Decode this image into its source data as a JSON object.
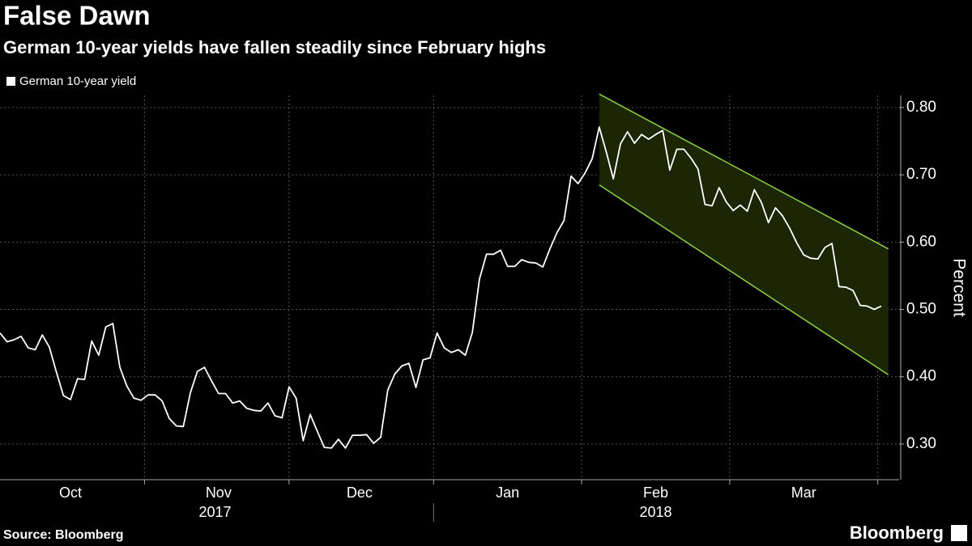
{
  "chart_data": {
    "type": "line",
    "title": "False Dawn",
    "subtitle": "German 10-year yields have fallen steadily since February highs",
    "y_label": "Percent",
    "source": "Source: Bloomberg",
    "brand": "Bloomberg",
    "categories": [
      null,
      null,
      null,
      null,
      null,
      null,
      null,
      null,
      null,
      null,
      "Oct",
      null,
      null,
      null,
      null,
      null,
      null,
      null,
      null,
      null,
      null,
      null,
      null,
      null,
      null,
      null,
      null,
      null,
      null,
      null,
      null,
      "Nov",
      null,
      null,
      null,
      null,
      null,
      null,
      null,
      null,
      null,
      null,
      null,
      null,
      null,
      null,
      null,
      null,
      null,
      null,
      null,
      "Dec",
      null,
      null,
      null,
      null,
      null,
      null,
      null,
      null,
      null,
      null,
      null,
      null,
      null,
      null,
      null,
      null,
      null,
      null,
      null,
      null,
      "Jan",
      null,
      null,
      null,
      null,
      null,
      null,
      null,
      null,
      null,
      null,
      null,
      null,
      null,
      null,
      null,
      null,
      null,
      null,
      null,
      null,
      "Feb",
      null,
      null,
      null,
      null,
      null,
      null,
      null,
      null,
      null,
      null,
      null,
      null,
      null,
      null,
      null,
      null,
      null,
      null,
      null,
      null,
      "Mar",
      null,
      null,
      null,
      null,
      null,
      null,
      null,
      null,
      null,
      null,
      null
    ],
    "year_labels": [
      "2017",
      "2018"
    ],
    "series": [
      {
        "name": "German 10-year yield",
        "color": "#ffffff",
        "values": [
          0.465,
          0.452,
          0.455,
          0.46,
          0.443,
          0.44,
          0.462,
          0.444,
          0.407,
          0.372,
          0.366,
          0.397,
          0.396,
          0.453,
          0.432,
          0.474,
          0.479,
          0.414,
          0.386,
          0.368,
          0.365,
          0.373,
          0.373,
          0.364,
          0.338,
          0.327,
          0.326,
          0.376,
          0.408,
          0.414,
          0.394,
          0.375,
          0.375,
          0.361,
          0.364,
          0.353,
          0.35,
          0.349,
          0.361,
          0.342,
          0.339,
          0.385,
          0.368,
          0.305,
          0.344,
          0.319,
          0.295,
          0.294,
          0.307,
          0.294,
          0.313,
          0.313,
          0.314,
          0.301,
          0.31,
          0.38,
          0.404,
          0.416,
          0.42,
          0.384,
          0.425,
          0.428,
          0.465,
          0.443,
          0.436,
          0.44,
          0.432,
          0.466,
          0.545,
          0.582,
          0.582,
          0.588,
          0.564,
          0.564,
          0.574,
          0.57,
          0.569,
          0.563,
          0.59,
          0.614,
          0.632,
          0.698,
          0.687,
          0.703,
          0.724,
          0.771,
          0.734,
          0.694,
          0.746,
          0.764,
          0.747,
          0.76,
          0.753,
          0.76,
          0.766,
          0.707,
          0.738,
          0.738,
          0.725,
          0.709,
          0.656,
          0.654,
          0.681,
          0.66,
          0.647,
          0.655,
          0.646,
          0.678,
          0.659,
          0.629,
          0.651,
          0.639,
          0.621,
          0.599,
          0.581,
          0.576,
          0.575,
          0.592,
          0.598,
          0.534,
          0.533,
          0.528,
          0.506,
          0.505,
          0.5,
          0.505
        ]
      }
    ],
    "channel": {
      "x": [
        85,
        126
      ],
      "upper": [
        0.82,
        0.59
      ],
      "lower": [
        0.685,
        0.403
      ],
      "color": "#8fd13f",
      "fill": "#1c2605"
    },
    "ylim": [
      0.247,
      0.818
    ],
    "yticks": [
      {
        "value": 0.3,
        "label": "0.30"
      },
      {
        "value": 0.4,
        "label": "0.40"
      },
      {
        "value": 0.5,
        "label": "0.50"
      },
      {
        "value": 0.6,
        "label": "0.60"
      },
      {
        "value": 0.7,
        "label": "0.70"
      },
      {
        "value": 0.8,
        "label": "0.80"
      }
    ],
    "grid": true
  }
}
